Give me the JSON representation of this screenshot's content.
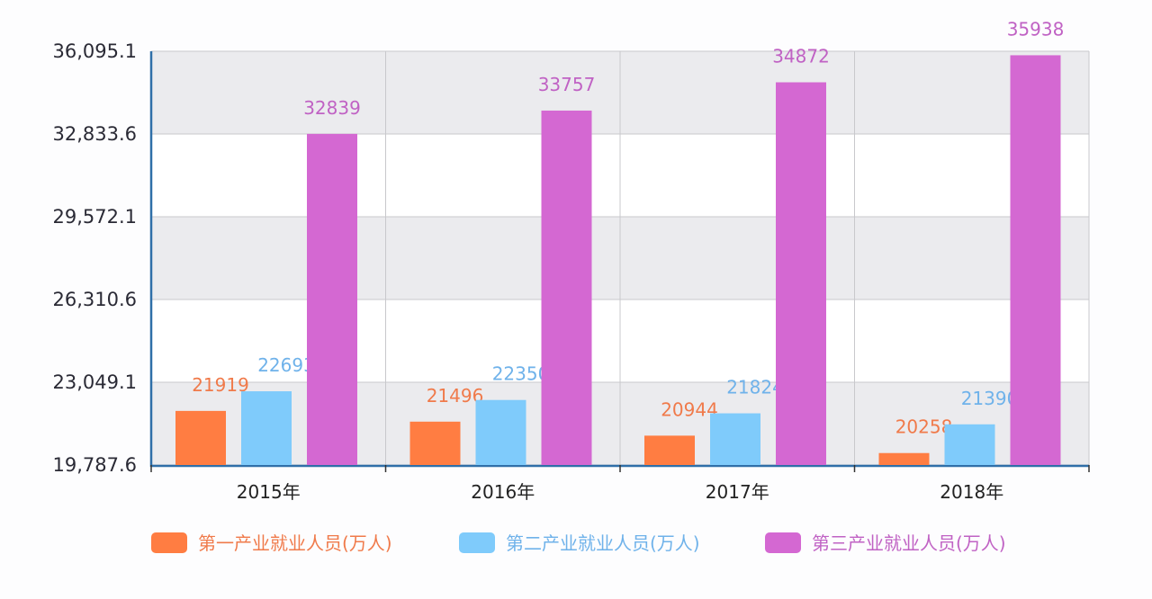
{
  "chart_data": {
    "type": "bar",
    "title": "",
    "xlabel": "",
    "ylabel": "",
    "categories": [
      "2015年",
      "2016年",
      "2017年",
      "2018年"
    ],
    "y_ticks": [
      "19,787.6",
      "23,049.1",
      "26,310.6",
      "29,572.1",
      "32,833.6",
      "36,095.1"
    ],
    "ylim": [
      19787.6,
      36095.1
    ],
    "grid": true,
    "legend_position": "bottom",
    "series": [
      {
        "name": "第一产业就业人员(万人)",
        "color": "#ff7d42",
        "label_color": "#f07a4a",
        "values": [
          21919,
          21496,
          20944,
          20258
        ]
      },
      {
        "name": "第二产业就业人员(万人)",
        "color": "#7fcbfb",
        "label_color": "#6fb2ea",
        "values": [
          22693,
          22350,
          21824,
          21390
        ]
      },
      {
        "name": "第三产业就业人员(万人)",
        "color": "#d468d2",
        "label_color": "#c062c4",
        "values": [
          32839,
          33757,
          34872,
          35938
        ]
      }
    ]
  }
}
